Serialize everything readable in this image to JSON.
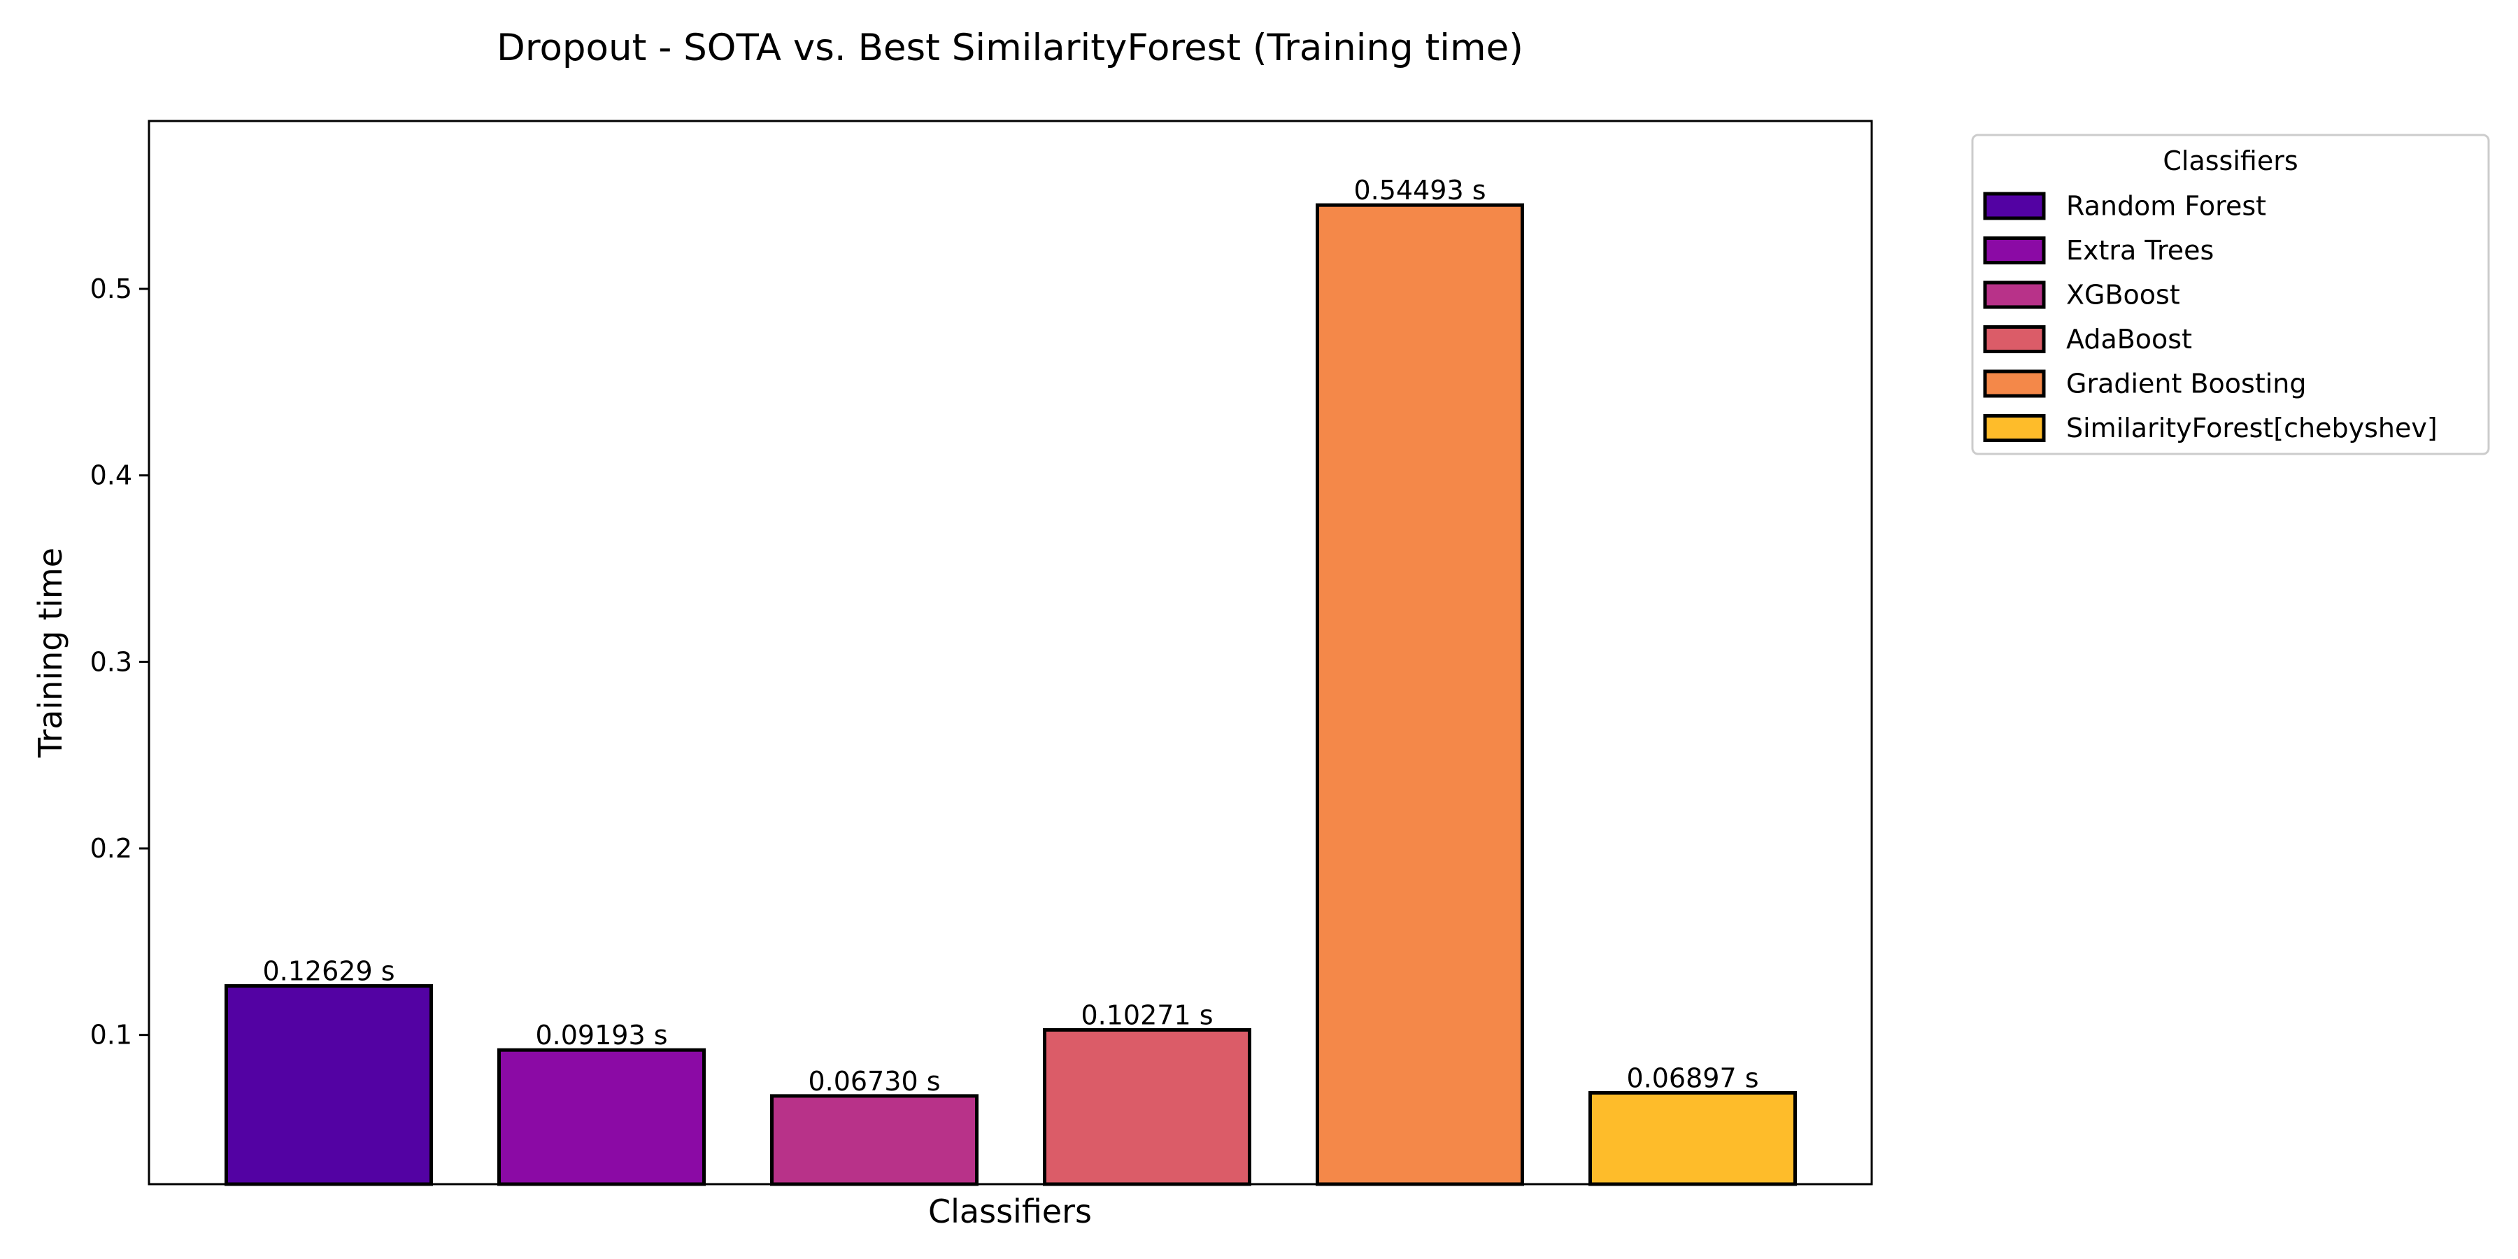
{
  "chart_data": {
    "type": "bar",
    "title": "Dropout - SOTA vs. Best SimilarityForest (Training time)",
    "xlabel": "Classifiers",
    "ylabel": "Training time",
    "ylim": [
      0.02,
      0.59
    ],
    "yticks": [
      0.1,
      0.2,
      0.3,
      0.4,
      0.5
    ],
    "ytick_labels": [
      "0.1",
      "0.2",
      "0.3",
      "0.4",
      "0.5"
    ],
    "grid": false,
    "legend": {
      "title": "Classifiers",
      "placement": "outside-top-right"
    },
    "categories": [
      "Random Forest",
      "Extra Trees",
      "XGBoost",
      "AdaBoost",
      "Gradient Boosting",
      "SimilarityForest[chebyshev]"
    ],
    "values": [
      0.12629,
      0.09193,
      0.0673,
      0.10271,
      0.54493,
      0.06897
    ],
    "value_labels": [
      "0.12629 s",
      "0.09193 s",
      "0.06730 s",
      "0.10271 s",
      "0.54493 s",
      "0.06897 s"
    ],
    "colors": [
      "#5302a3",
      "#8b0aa5",
      "#b83289",
      "#db5c68",
      "#f48849",
      "#febc2a"
    ]
  }
}
